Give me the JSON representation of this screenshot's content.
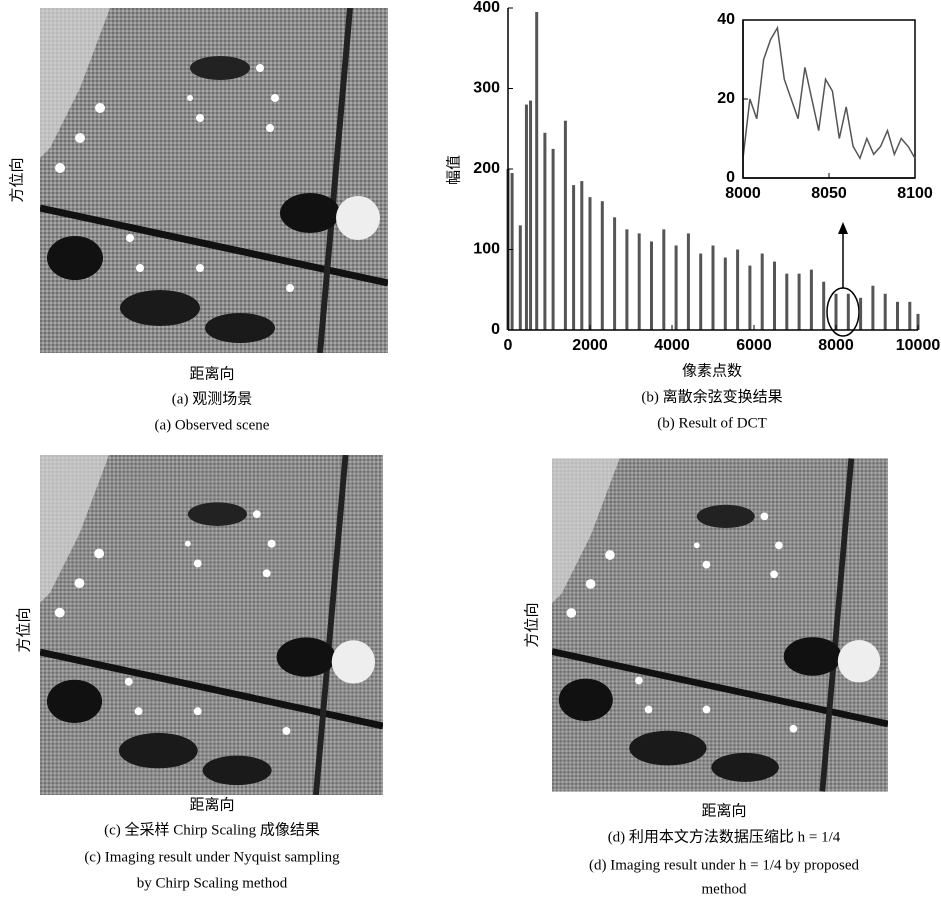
{
  "panels": [
    {
      "y_label": "方位向",
      "x_label": "距离向",
      "caption_zh": "(a) 观测场景",
      "caption_en": "(a) Observed scene"
    },
    {
      "y_label": "方位向",
      "x_label": "距离向",
      "caption_zh": "(c) 全采样 Chirp Scaling 成像结果",
      "caption_en": "(c) Imaging result under Nyquist sampling",
      "caption_en_2": "by Chirp Scaling method"
    },
    {
      "y_label": "方位向",
      "x_label": "距离向",
      "caption_zh": "(d) 利用本文方法数据压缩比 h = 1/4",
      "caption_en": "(d) Imaging result under h = 1/4 by proposed",
      "caption_en_2": "method"
    }
  ],
  "chart_data": [
    {
      "type": "bar",
      "y_label": "幅值",
      "x_label": "像素点数",
      "caption_zh": "(b) 离散余弦变换结果",
      "caption_en": "(b) Result of DCT",
      "color": "#555555",
      "x": [
        0,
        100,
        300,
        450,
        550,
        700,
        900,
        1100,
        1400,
        1600,
        1800,
        2000,
        2300,
        2600,
        2900,
        3200,
        3500,
        3800,
        4100,
        4400,
        4700,
        5000,
        5300,
        5600,
        5900,
        6200,
        6500,
        6800,
        7100,
        7400,
        7700,
        8000,
        8300,
        8600,
        8900,
        9200,
        9500,
        9800,
        10000
      ],
      "values": [
        200,
        195,
        130,
        280,
        285,
        395,
        245,
        225,
        260,
        180,
        185,
        165,
        160,
        140,
        125,
        120,
        110,
        125,
        105,
        120,
        95,
        105,
        90,
        100,
        80,
        95,
        85,
        70,
        70,
        75,
        60,
        45,
        45,
        40,
        55,
        45,
        35,
        35,
        20
      ],
      "xlim": [
        0,
        10000
      ],
      "ylim": [
        0,
        400
      ],
      "xticks": [
        0,
        2000,
        4000,
        6000,
        8000,
        10000
      ],
      "yticks": [
        0,
        100,
        200,
        300,
        400
      ]
    },
    {
      "type": "line",
      "color": "#555555",
      "x": [
        8000,
        8004,
        8008,
        8012,
        8016,
        8020,
        8024,
        8028,
        8032,
        8036,
        8040,
        8044,
        8048,
        8052,
        8056,
        8060,
        8064,
        8068,
        8072,
        8076,
        8080,
        8084,
        8088,
        8092,
        8096,
        8100
      ],
      "values": [
        5,
        20,
        15,
        30,
        35,
        38,
        25,
        20,
        15,
        28,
        20,
        12,
        25,
        22,
        10,
        18,
        8,
        5,
        10,
        6,
        8,
        12,
        6,
        10,
        8,
        5
      ],
      "xlim": [
        8000,
        8100
      ],
      "ylim": [
        0,
        40
      ],
      "xticks": [
        8000,
        8050,
        8100
      ],
      "yticks": [
        0,
        20,
        40
      ]
    }
  ]
}
